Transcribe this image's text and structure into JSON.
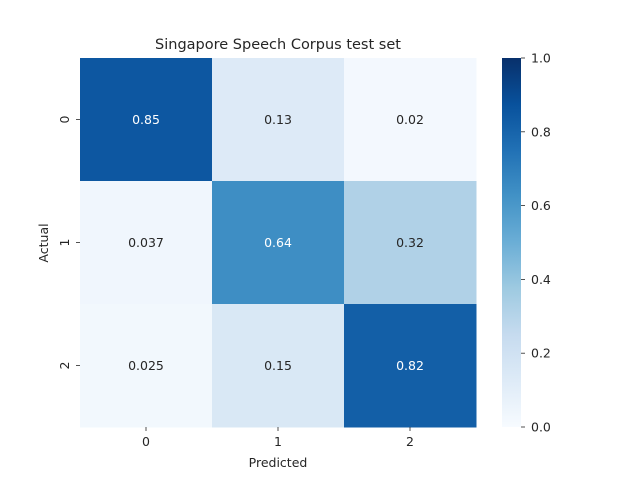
{
  "chart_data": {
    "type": "heatmap",
    "title": "Singapore Speech Corpus test set",
    "xlabel": "Predicted",
    "ylabel": "Actual",
    "x_categories": [
      "0",
      "1",
      "2"
    ],
    "y_categories": [
      "0",
      "1",
      "2"
    ],
    "values": [
      [
        0.85,
        0.13,
        0.02
      ],
      [
        0.037,
        0.64,
        0.32
      ],
      [
        0.025,
        0.15,
        0.82
      ]
    ],
    "cell_labels": [
      [
        "0.85",
        "0.13",
        "0.02"
      ],
      [
        "0.037",
        "0.64",
        "0.32"
      ],
      [
        "0.025",
        "0.15",
        "0.82"
      ]
    ],
    "colorbar": {
      "range": [
        0.0,
        1.0
      ],
      "ticks": [
        0.0,
        0.2,
        0.4,
        0.6,
        0.8,
        1.0
      ],
      "tick_labels": [
        "0.0",
        "0.2",
        "0.4",
        "0.6",
        "0.8",
        "1.0"
      ]
    },
    "colormap": "Blues",
    "color_stops": [
      "#f7fbff",
      "#deebf7",
      "#c6dbef",
      "#9ecae1",
      "#6baed6",
      "#4292c6",
      "#2171b5",
      "#08519c",
      "#08306b"
    ]
  }
}
